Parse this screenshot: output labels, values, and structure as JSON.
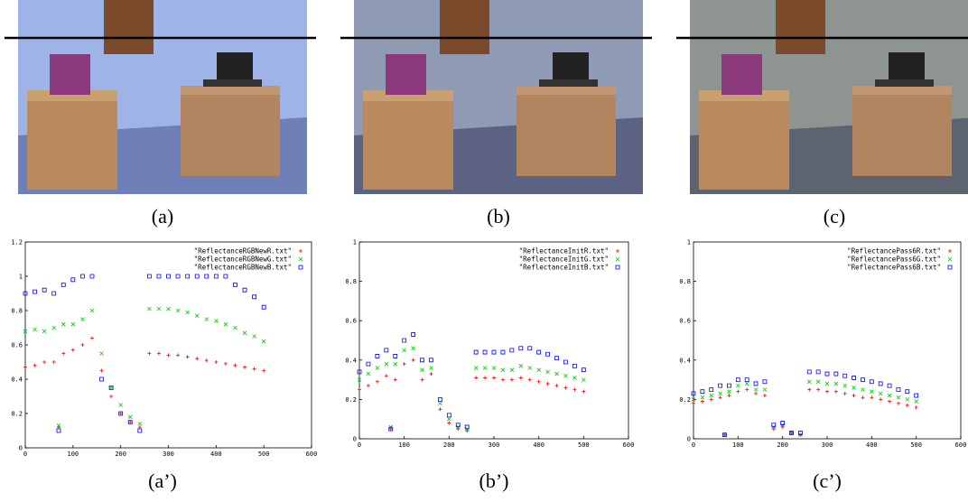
{
  "photos": [
    {
      "caption": "(a)"
    },
    {
      "caption": "(b)"
    },
    {
      "caption": "(c)"
    }
  ],
  "chart_data": [
    {
      "type": "scatter",
      "caption": "(a’)",
      "x": [
        0,
        20,
        40,
        60,
        70,
        80,
        100,
        120,
        140,
        160,
        180,
        200,
        220,
        240,
        260,
        280,
        300,
        320,
        340,
        360,
        380,
        400,
        420,
        440,
        460,
        480,
        500
      ],
      "series": [
        {
          "name": "\"ReflectanceRGBNewR.txt\"",
          "color": "#ff0000",
          "marker": "plus",
          "values": [
            0.47,
            0.48,
            0.5,
            0.5,
            0.12,
            0.55,
            0.57,
            0.6,
            0.64,
            0.45,
            0.3,
            0.2,
            0.15,
            0.12,
            0.55,
            0.55,
            0.54,
            0.54,
            0.53,
            0.52,
            0.51,
            0.5,
            0.49,
            0.48,
            0.47,
            0.46,
            0.45
          ]
        },
        {
          "name": "\"ReflectanceRGBNewG.txt\"",
          "color": "#00cc00",
          "marker": "cross",
          "values": [
            0.68,
            0.69,
            0.68,
            0.7,
            0.13,
            0.72,
            0.72,
            0.75,
            0.8,
            0.55,
            0.35,
            0.25,
            0.18,
            0.14,
            0.81,
            0.81,
            0.81,
            0.8,
            0.79,
            0.77,
            0.75,
            0.74,
            0.72,
            0.7,
            0.67,
            0.65,
            0.62
          ]
        },
        {
          "name": "\"ReflectanceRGBNewB.txt\"",
          "color": "#0000ff",
          "marker": "square",
          "values": [
            0.9,
            0.91,
            0.92,
            0.9,
            0.1,
            0.95,
            0.98,
            1,
            1,
            0.4,
            0.35,
            0.2,
            0.15,
            0.1,
            1,
            1,
            1,
            1,
            1,
            1,
            1,
            1,
            1,
            0.95,
            0.92,
            0.88,
            0.82
          ]
        }
      ],
      "xlim": [
        0,
        600
      ],
      "ylim": [
        0,
        1.2
      ],
      "xticks": [
        0,
        100,
        200,
        300,
        400,
        500,
        600
      ],
      "yticks": [
        0,
        0.2,
        0.4,
        0.6,
        0.8,
        1,
        1.2
      ]
    },
    {
      "type": "scatter",
      "caption": "(b’)",
      "x": [
        0,
        20,
        40,
        60,
        70,
        80,
        100,
        120,
        140,
        160,
        180,
        200,
        220,
        240,
        260,
        280,
        300,
        320,
        340,
        360,
        380,
        400,
        420,
        440,
        460,
        480,
        500
      ],
      "series": [
        {
          "name": "\"ReflectanceInitR.txt\"",
          "color": "#ff0000",
          "marker": "plus",
          "values": [
            0.25,
            0.27,
            0.29,
            0.32,
            0.05,
            0.3,
            0.38,
            0.4,
            0.3,
            0.33,
            0.15,
            0.08,
            0.05,
            0.04,
            0.31,
            0.31,
            0.31,
            0.3,
            0.3,
            0.31,
            0.3,
            0.29,
            0.28,
            0.27,
            0.26,
            0.25,
            0.24
          ]
        },
        {
          "name": "\"ReflectanceInitG.txt\"",
          "color": "#00cc00",
          "marker": "cross",
          "values": [
            0.3,
            0.33,
            0.36,
            0.38,
            0.06,
            0.38,
            0.45,
            0.46,
            0.35,
            0.36,
            0.18,
            0.1,
            0.06,
            0.05,
            0.36,
            0.36,
            0.36,
            0.35,
            0.35,
            0.37,
            0.36,
            0.35,
            0.34,
            0.33,
            0.32,
            0.31,
            0.3
          ]
        },
        {
          "name": "\"ReflectanceInitB.txt\"",
          "color": "#0000ff",
          "marker": "square",
          "values": [
            0.34,
            0.38,
            0.42,
            0.45,
            0.05,
            0.42,
            0.5,
            0.53,
            0.4,
            0.4,
            0.2,
            0.12,
            0.07,
            0.06,
            0.44,
            0.44,
            0.44,
            0.44,
            0.45,
            0.46,
            0.46,
            0.44,
            0.43,
            0.41,
            0.39,
            0.37,
            0.35
          ]
        }
      ],
      "xlim": [
        0,
        600
      ],
      "ylim": [
        0,
        1
      ],
      "xticks": [
        0,
        100,
        200,
        300,
        400,
        500,
        600
      ],
      "yticks": [
        0,
        0.2,
        0.4,
        0.6,
        0.8,
        1
      ]
    },
    {
      "type": "scatter",
      "caption": "(c’)",
      "x": [
        0,
        20,
        40,
        60,
        70,
        80,
        100,
        120,
        140,
        160,
        180,
        200,
        220,
        240,
        260,
        280,
        300,
        320,
        340,
        360,
        380,
        400,
        420,
        440,
        460,
        480,
        500
      ],
      "series": [
        {
          "name": "\"ReflectancePass6R.txt\"",
          "color": "#ff0000",
          "marker": "plus",
          "values": [
            0.18,
            0.19,
            0.2,
            0.21,
            0.02,
            0.22,
            0.24,
            0.25,
            0.23,
            0.22,
            0.05,
            0.06,
            0.03,
            0.02,
            0.25,
            0.25,
            0.24,
            0.24,
            0.23,
            0.22,
            0.21,
            0.21,
            0.2,
            0.19,
            0.18,
            0.17,
            0.16
          ]
        },
        {
          "name": "\"ReflectancePass6G.txt\"",
          "color": "#00cc00",
          "marker": "cross",
          "values": [
            0.2,
            0.21,
            0.22,
            0.23,
            0.02,
            0.24,
            0.27,
            0.28,
            0.25,
            0.25,
            0.06,
            0.07,
            0.03,
            0.02,
            0.29,
            0.29,
            0.28,
            0.28,
            0.27,
            0.26,
            0.25,
            0.24,
            0.23,
            0.22,
            0.21,
            0.2,
            0.19
          ]
        },
        {
          "name": "\"ReflectancePass6B.txt\"",
          "color": "#0000ff",
          "marker": "square",
          "values": [
            0.23,
            0.24,
            0.25,
            0.27,
            0.02,
            0.27,
            0.3,
            0.3,
            0.28,
            0.29,
            0.07,
            0.08,
            0.03,
            0.03,
            0.34,
            0.34,
            0.33,
            0.33,
            0.32,
            0.31,
            0.3,
            0.29,
            0.28,
            0.27,
            0.25,
            0.24,
            0.22
          ]
        }
      ],
      "xlim": [
        0,
        600
      ],
      "ylim": [
        0,
        1
      ],
      "xticks": [
        0,
        100,
        200,
        300,
        400,
        500,
        600
      ],
      "yticks": [
        0,
        0.2,
        0.4,
        0.6,
        0.8,
        1
      ]
    }
  ]
}
